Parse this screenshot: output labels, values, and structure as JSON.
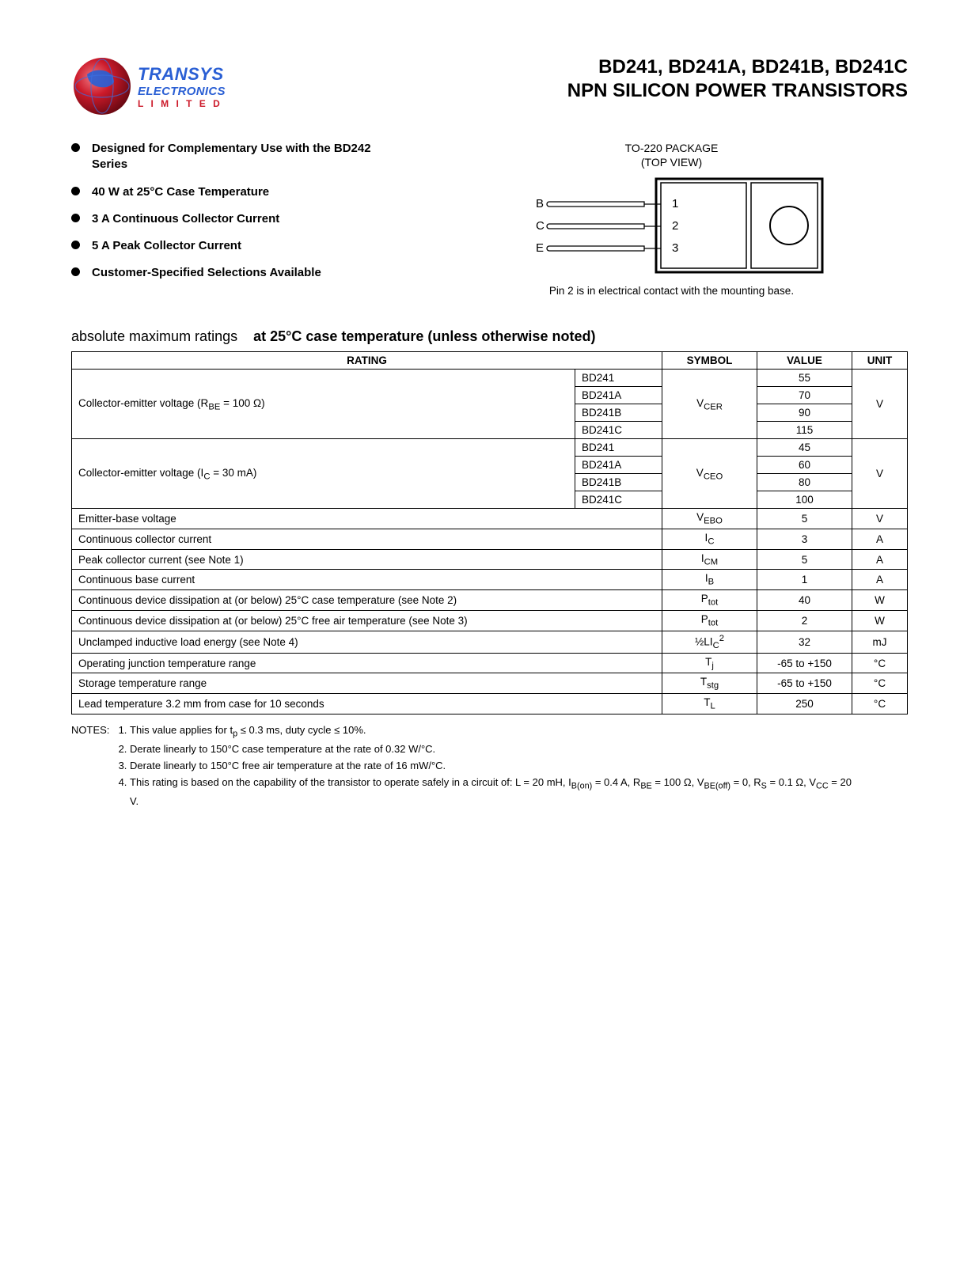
{
  "header": {
    "logo": {
      "line1": "TRANSYS",
      "line2": "ELECTRONICS",
      "line3": "L I M I T E D"
    },
    "title_line1": "BD241, BD241A, BD241B, BD241C",
    "title_line2": "NPN SILICON POWER TRANSISTORS"
  },
  "features": [
    "Designed for Complementary Use with the BD242 Series",
    "40 W at 25°C Case Temperature",
    "3 A Continuous Collector Current",
    "5 A Peak Collector Current",
    "Customer-Specified Selections Available"
  ],
  "package": {
    "caption_line1": "TO-220 PACKAGE",
    "caption_line2": "(TOP VIEW)",
    "pins": {
      "b": "B",
      "c": "C",
      "e": "E",
      "n1": "1",
      "n2": "2",
      "n3": "3"
    },
    "note": "Pin 2 is in electrical contact with the mounting base."
  },
  "ratings_heading": {
    "light": "absolute maximum ratings",
    "bold": "at 25°C case temperature (unless otherwise noted)"
  },
  "table": {
    "headers": {
      "rating": "RATING",
      "symbol": "SYMBOL",
      "value": "VALUE",
      "unit": "UNIT"
    },
    "group1": {
      "label_html": "Collector-emitter voltage (R<sub>BE</sub> = 100 Ω)",
      "variants": [
        "BD241",
        "BD241A",
        "BD241B",
        "BD241C"
      ],
      "symbol_html": "V<sub>CER</sub>",
      "values": [
        "55",
        "70",
        "90",
        "115"
      ],
      "unit": "V"
    },
    "group2": {
      "label_html": "Collector-emitter voltage (I<sub>C</sub> = 30 mA)",
      "variants": [
        "BD241",
        "BD241A",
        "BD241B",
        "BD241C"
      ],
      "symbol_html": "V<sub>CEO</sub>",
      "values": [
        "45",
        "60",
        "80",
        "100"
      ],
      "unit": "V"
    },
    "rows": [
      {
        "label_html": "Emitter-base voltage",
        "symbol_html": "V<sub>EBO</sub>",
        "value": "5",
        "unit": "V"
      },
      {
        "label_html": "Continuous collector current",
        "symbol_html": "I<sub>C</sub>",
        "value": "3",
        "unit": "A"
      },
      {
        "label_html": "Peak collector current (see Note 1)",
        "symbol_html": "I<sub>CM</sub>",
        "value": "5",
        "unit": "A"
      },
      {
        "label_html": "Continuous base current",
        "symbol_html": "I<sub>B</sub>",
        "value": "1",
        "unit": "A"
      },
      {
        "label_html": "Continuous device dissipation at (or below) 25°C case temperature (see Note 2)",
        "symbol_html": "P<sub>tot</sub>",
        "value": "40",
        "unit": "W"
      },
      {
        "label_html": "Continuous device dissipation at (or below) 25°C free air temperature (see Note 3)",
        "symbol_html": "P<sub>tot</sub>",
        "value": "2",
        "unit": "W"
      },
      {
        "label_html": "Unclamped inductive load energy (see Note 4)",
        "symbol_html": "½LI<sub>C</sub><sup>2</sup>",
        "value": "32",
        "unit": "mJ"
      },
      {
        "label_html": "Operating junction temperature range",
        "symbol_html": "T<sub>j</sub>",
        "value": "-65 to +150",
        "unit": "°C"
      },
      {
        "label_html": "Storage temperature range",
        "symbol_html": "T<sub>stg</sub>",
        "value": "-65 to +150",
        "unit": "°C"
      },
      {
        "label_html": "Lead temperature 3.2 mm from case for 10 seconds",
        "symbol_html": "T<sub>L</sub>",
        "value": "250",
        "unit": "°C"
      }
    ]
  },
  "notes": {
    "label": "NOTES:",
    "items": [
      "This value applies for t<sub>p</sub> ≤ 0.3 ms, duty cycle ≤ 10%.",
      "Derate linearly to 150°C  case temperature at the rate of 0.32 W/°C.",
      "Derate linearly to 150°C  free air temperature at the rate of 16 mW/°C.",
      "This rating is based on the capability of the transistor to operate safely in a circuit of: L = 20 mH, I<sub>B(on)</sub> = 0.4 A, R<sub>BE</sub> = 100 Ω, V<sub>BE(off)</sub> = 0, R<sub>S</sub> = 0.1 Ω, V<sub>CC</sub> = 20 V."
    ]
  },
  "colors": {
    "logo_blue": "#2a5fd4",
    "logo_red": "#cc1a2a",
    "globe_grad_a": "#e0303f",
    "globe_grad_b": "#7a0a14"
  }
}
